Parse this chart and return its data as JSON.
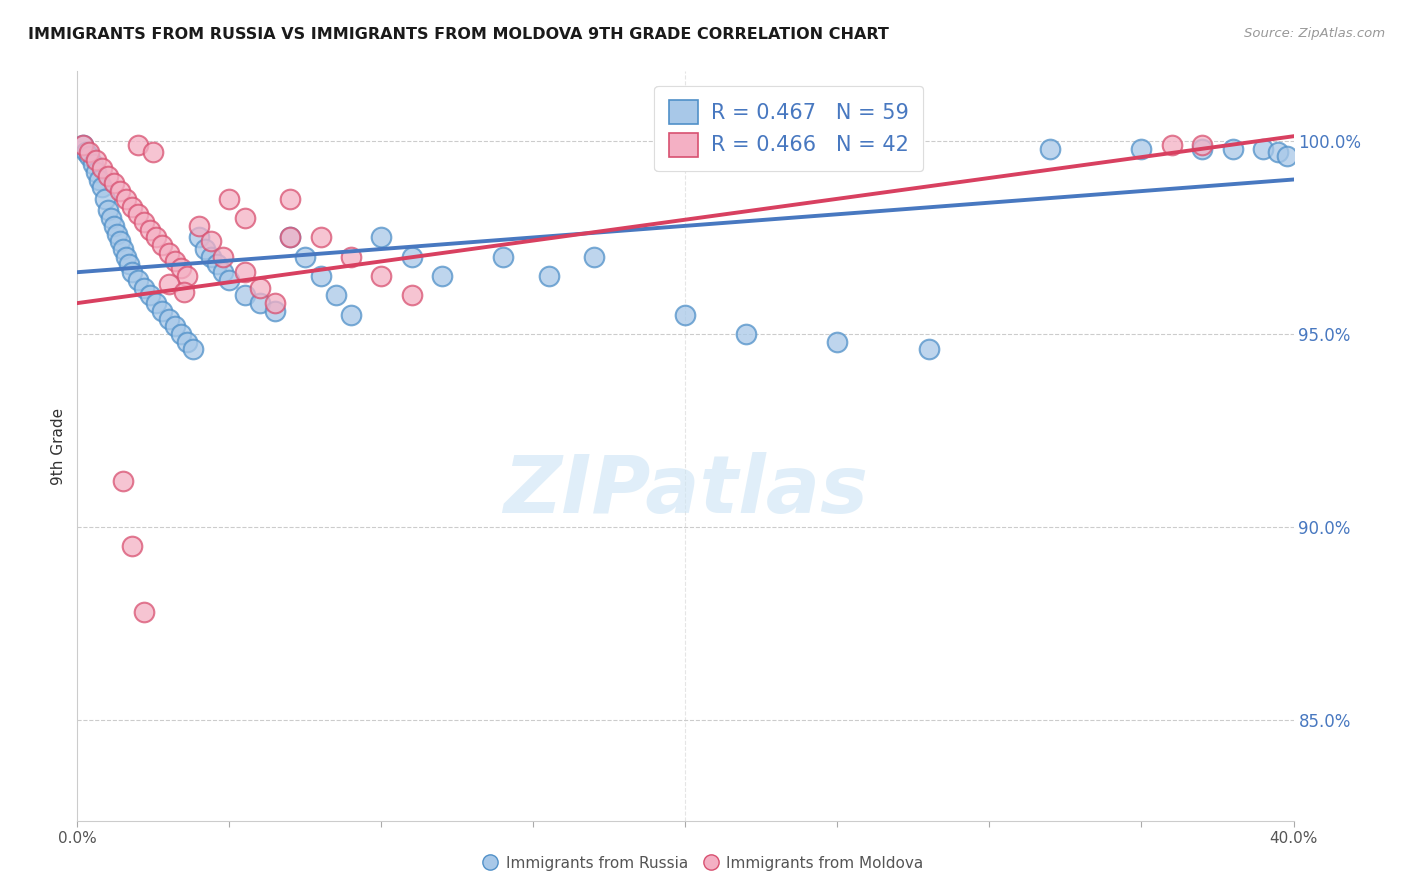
{
  "title": "IMMIGRANTS FROM RUSSIA VS IMMIGRANTS FROM MOLDOVA 9TH GRADE CORRELATION CHART",
  "source": "Source: ZipAtlas.com",
  "ylabel": "9th Grade",
  "ytick_labels": [
    "100.0%",
    "95.0%",
    "90.0%",
    "85.0%"
  ],
  "ytick_values": [
    1.0,
    0.95,
    0.9,
    0.85
  ],
  "xmin": 0.0,
  "xmax": 0.4,
  "ymin": 0.824,
  "ymax": 1.018,
  "legend_russia": "R = 0.467   N = 59",
  "legend_moldova": "R = 0.466   N = 42",
  "russia_color": "#a8c8e8",
  "moldova_color": "#f4b0c4",
  "russia_edge_color": "#5090c8",
  "moldova_edge_color": "#d85070",
  "russia_line_color": "#4878c0",
  "moldova_line_color": "#d84060",
  "watermark": "ZIPatlas",
  "legend_russia_fill": "#a8c8e8",
  "legend_moldova_fill": "#f4b0c4",
  "russia_line_intercept": 0.966,
  "russia_line_slope": 0.06,
  "moldova_line_intercept": 0.958,
  "moldova_line_slope": 0.108,
  "xtick_count": 5,
  "xtick_values": [
    0.0,
    0.1,
    0.2,
    0.3,
    0.4
  ]
}
